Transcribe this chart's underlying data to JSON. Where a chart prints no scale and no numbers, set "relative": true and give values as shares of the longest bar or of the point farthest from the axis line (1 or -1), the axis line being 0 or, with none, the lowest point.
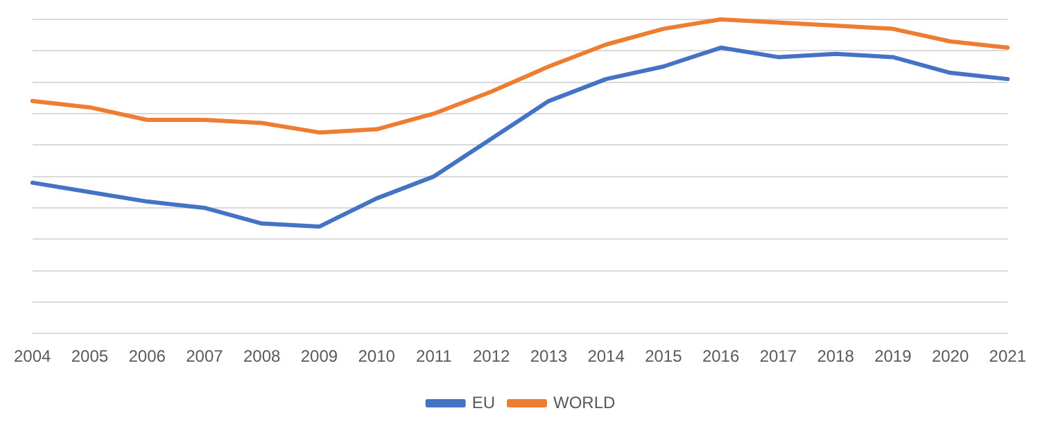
{
  "chart_data": {
    "type": "line",
    "relative": true,
    "grid": "y",
    "legend": "bottom",
    "marker": "none",
    "categories": [
      "2004",
      "2005",
      "2006",
      "2007",
      "2008",
      "2009",
      "2010",
      "2011",
      "2012",
      "2013",
      "2014",
      "2015",
      "2016",
      "2017",
      "2018",
      "2019",
      "2020",
      "2021"
    ],
    "series": [
      {
        "name": "EU",
        "color": "#4472c4",
        "values": [
          0.48,
          0.45,
          0.42,
          0.4,
          0.35,
          0.34,
          0.43,
          0.5,
          0.62,
          0.74,
          0.81,
          0.85,
          0.91,
          0.88,
          0.89,
          0.88,
          0.83,
          0.81
        ]
      },
      {
        "name": "WORLD",
        "color": "#ed7d31",
        "values": [
          0.74,
          0.72,
          0.68,
          0.68,
          0.67,
          0.64,
          0.65,
          0.7,
          0.77,
          0.85,
          0.92,
          0.97,
          1,
          0.99,
          0.98,
          0.97,
          0.93,
          0.91
        ]
      }
    ]
  }
}
